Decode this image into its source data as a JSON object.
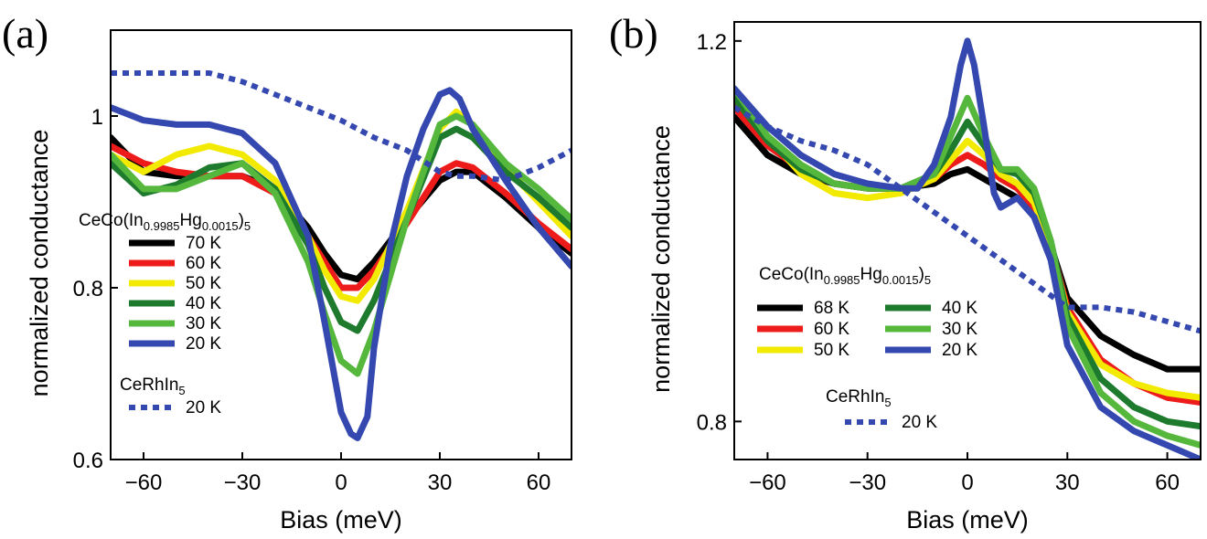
{
  "chart_data": [
    {
      "panel": "(a)",
      "type": "line",
      "xlabel": "Bias (meV)",
      "ylabel": "normalized conductance",
      "xlim": [
        -70,
        70
      ],
      "ylim": [
        0.6,
        1.1
      ],
      "xticks": [
        -60,
        -30,
        0,
        30,
        60
      ],
      "xtick_labels": [
        "−60",
        "−30",
        "0",
        "30",
        "60"
      ],
      "yticks": [
        0.6,
        0.8,
        1.0
      ],
      "ytick_labels": [
        "0.6",
        "0.8",
        "1"
      ],
      "legend": {
        "title_parts": [
          "CeCo(In",
          "0.9985",
          "Hg",
          "0.0015",
          ")",
          "5"
        ],
        "title2_parts": [
          "CeRhIn",
          "5"
        ]
      },
      "series": [
        {
          "name": "70 K",
          "color": "#000000",
          "style": "solid",
          "x": [
            -70,
            -60,
            -50,
            -40,
            -30,
            -20,
            -10,
            -5,
            0,
            5,
            10,
            20,
            30,
            35,
            40,
            50,
            60,
            70
          ],
          "y": [
            0.975,
            0.935,
            0.93,
            0.93,
            0.93,
            0.915,
            0.87,
            0.84,
            0.815,
            0.81,
            0.83,
            0.88,
            0.925,
            0.935,
            0.935,
            0.905,
            0.87,
            0.84
          ]
        },
        {
          "name": "60 K",
          "color": "#ee1b1b",
          "style": "solid",
          "x": [
            -70,
            -60,
            -50,
            -40,
            -30,
            -20,
            -10,
            -5,
            0,
            5,
            10,
            20,
            30,
            35,
            40,
            50,
            60,
            70
          ],
          "y": [
            0.965,
            0.945,
            0.935,
            0.93,
            0.93,
            0.91,
            0.86,
            0.83,
            0.8,
            0.8,
            0.82,
            0.875,
            0.935,
            0.945,
            0.94,
            0.91,
            0.875,
            0.845
          ]
        },
        {
          "name": "50 K",
          "color": "#f2ea00",
          "style": "solid",
          "x": [
            -70,
            -60,
            -50,
            -40,
            -30,
            -20,
            -10,
            -5,
            0,
            5,
            10,
            20,
            30,
            35,
            40,
            50,
            60,
            70
          ],
          "y": [
            0.955,
            0.935,
            0.955,
            0.965,
            0.955,
            0.925,
            0.86,
            0.82,
            0.79,
            0.785,
            0.81,
            0.89,
            0.985,
            1.005,
            0.99,
            0.94,
            0.9,
            0.86
          ]
        },
        {
          "name": "40 K",
          "color": "#1e7b2e",
          "style": "solid",
          "x": [
            -70,
            -60,
            -50,
            -40,
            -30,
            -20,
            -10,
            -5,
            0,
            5,
            10,
            20,
            30,
            35,
            40,
            50,
            60,
            70
          ],
          "y": [
            0.945,
            0.91,
            0.92,
            0.94,
            0.945,
            0.915,
            0.85,
            0.8,
            0.76,
            0.75,
            0.785,
            0.88,
            0.975,
            0.985,
            0.975,
            0.935,
            0.905,
            0.87
          ]
        },
        {
          "name": "30 K",
          "color": "#55b83c",
          "style": "solid",
          "x": [
            -70,
            -60,
            -50,
            -40,
            -30,
            -20,
            -10,
            -5,
            0,
            5,
            10,
            20,
            30,
            35,
            40,
            50,
            60,
            70
          ],
          "y": [
            0.955,
            0.915,
            0.915,
            0.93,
            0.945,
            0.91,
            0.83,
            0.77,
            0.715,
            0.7,
            0.75,
            0.88,
            0.99,
            1.0,
            0.99,
            0.945,
            0.915,
            0.88
          ]
        },
        {
          "name": "20 K",
          "color": "#3448b0",
          "style": "solid",
          "x": [
            -70,
            -60,
            -50,
            -40,
            -30,
            -20,
            -10,
            -5,
            0,
            3,
            5,
            8,
            10,
            15,
            20,
            25,
            30,
            33,
            36,
            40,
            50,
            60,
            70
          ],
          "y": [
            1.01,
            0.995,
            0.99,
            0.99,
            0.98,
            0.945,
            0.86,
            0.76,
            0.655,
            0.63,
            0.625,
            0.65,
            0.73,
            0.85,
            0.93,
            0.985,
            1.025,
            1.03,
            1.02,
            0.985,
            0.925,
            0.87,
            0.825
          ]
        },
        {
          "name": "20 K",
          "group": "CeRhIn5",
          "color": "#3448b0",
          "style": "dotted",
          "x": [
            -70,
            -60,
            -50,
            -40,
            -30,
            -20,
            -10,
            0,
            10,
            20,
            30,
            35,
            40,
            50,
            60,
            70
          ],
          "y": [
            1.05,
            1.05,
            1.05,
            1.05,
            1.04,
            1.025,
            1.01,
            0.995,
            0.975,
            0.96,
            0.935,
            0.93,
            0.93,
            0.925,
            0.94,
            0.96
          ]
        }
      ]
    },
    {
      "panel": "(b)",
      "type": "line",
      "xlabel": "Bias (meV)",
      "ylabel": "normalized conductance",
      "xlim": [
        -70,
        70
      ],
      "ylim": [
        0.76,
        1.22
      ],
      "xticks": [
        -60,
        -30,
        0,
        30,
        60
      ],
      "xtick_labels": [
        "−60",
        "−30",
        "0",
        "30",
        "60"
      ],
      "yticks": [
        0.8,
        1.2
      ],
      "ytick_labels": [
        "0.8",
        "1.2"
      ],
      "legend": {
        "title_parts": [
          "CeCo(In",
          "0.9985",
          "Hg",
          "0.0015",
          ")",
          "5"
        ],
        "title2_parts": [
          "CeRhIn",
          "5"
        ]
      },
      "series": [
        {
          "name": "68 K",
          "color": "#000000",
          "style": "solid",
          "x": [
            -70,
            -60,
            -50,
            -40,
            -30,
            -20,
            -10,
            -5,
            0,
            5,
            10,
            15,
            20,
            25,
            30,
            40,
            50,
            60,
            70
          ],
          "y": [
            1.12,
            1.08,
            1.06,
            1.05,
            1.045,
            1.045,
            1.05,
            1.06,
            1.065,
            1.055,
            1.045,
            1.035,
            1.02,
            0.985,
            0.93,
            0.89,
            0.87,
            0.855,
            0.855
          ]
        },
        {
          "name": "60 K",
          "color": "#ee1b1b",
          "style": "solid",
          "x": [
            -70,
            -60,
            -50,
            -40,
            -30,
            -20,
            -10,
            -5,
            0,
            5,
            10,
            15,
            20,
            25,
            30,
            40,
            50,
            60,
            70
          ],
          "y": [
            1.13,
            1.09,
            1.065,
            1.05,
            1.045,
            1.045,
            1.055,
            1.07,
            1.08,
            1.07,
            1.055,
            1.045,
            1.025,
            0.985,
            0.92,
            0.865,
            0.84,
            0.825,
            0.82
          ]
        },
        {
          "name": "50 K",
          "color": "#f2ea00",
          "style": "solid",
          "x": [
            -70,
            -60,
            -50,
            -40,
            -30,
            -20,
            -10,
            -5,
            0,
            5,
            10,
            15,
            20,
            25,
            30,
            40,
            50,
            60,
            70
          ],
          "y": [
            1.14,
            1.1,
            1.06,
            1.04,
            1.035,
            1.04,
            1.055,
            1.075,
            1.095,
            1.08,
            1.06,
            1.05,
            1.03,
            0.985,
            0.915,
            0.86,
            0.84,
            0.83,
            0.825
          ]
        },
        {
          "name": "40 K",
          "color": "#1e7b2e",
          "style": "solid",
          "x": [
            -70,
            -60,
            -50,
            -40,
            -30,
            -20,
            -10,
            -5,
            0,
            5,
            10,
            15,
            20,
            25,
            30,
            40,
            50,
            60,
            70
          ],
          "y": [
            1.14,
            1.095,
            1.065,
            1.05,
            1.045,
            1.045,
            1.06,
            1.085,
            1.115,
            1.09,
            1.065,
            1.06,
            1.04,
            0.99,
            0.91,
            0.845,
            0.815,
            0.8,
            0.795
          ]
        },
        {
          "name": "30 K",
          "color": "#55b83c",
          "style": "solid",
          "x": [
            -70,
            -60,
            -50,
            -40,
            -30,
            -20,
            -10,
            -5,
            0,
            5,
            10,
            15,
            20,
            25,
            30,
            40,
            50,
            60,
            70
          ],
          "y": [
            1.15,
            1.1,
            1.07,
            1.05,
            1.045,
            1.045,
            1.06,
            1.1,
            1.14,
            1.1,
            1.065,
            1.065,
            1.045,
            0.99,
            0.9,
            0.83,
            0.8,
            0.785,
            0.775
          ]
        },
        {
          "name": "20 K",
          "color": "#3448b0",
          "style": "solid",
          "x": [
            -70,
            -60,
            -50,
            -40,
            -30,
            -20,
            -15,
            -10,
            -5,
            -2,
            0,
            2,
            5,
            8,
            10,
            15,
            20,
            25,
            30,
            40,
            50,
            60,
            70
          ],
          "y": [
            1.15,
            1.11,
            1.08,
            1.06,
            1.05,
            1.045,
            1.045,
            1.07,
            1.12,
            1.175,
            1.2,
            1.175,
            1.11,
            1.04,
            1.025,
            1.035,
            1.015,
            0.97,
            0.88,
            0.815,
            0.79,
            0.775,
            0.76
          ]
        },
        {
          "name": "20 K",
          "group": "CeRhIn5",
          "color": "#3448b0",
          "style": "dotted",
          "x": [
            -70,
            -60,
            -50,
            -40,
            -30,
            -20,
            -10,
            0,
            10,
            20,
            30,
            40,
            50,
            60,
            70
          ],
          "y": [
            1.13,
            1.11,
            1.095,
            1.085,
            1.07,
            1.045,
            1.02,
            0.995,
            0.97,
            0.945,
            0.92,
            0.92,
            0.915,
            0.905,
            0.895
          ]
        }
      ]
    }
  ]
}
